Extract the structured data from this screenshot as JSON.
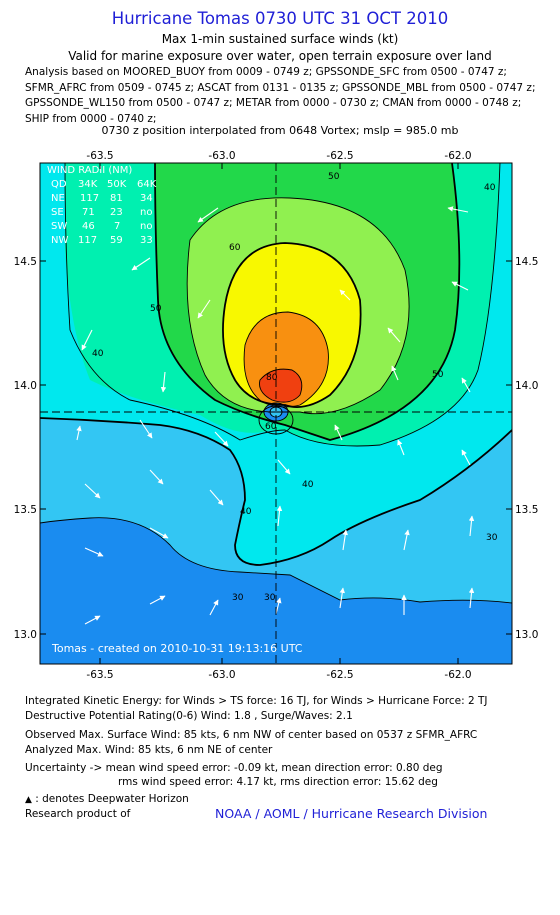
{
  "header": {
    "title": "Hurricane Tomas 0730 UTC 31 OCT 2010",
    "subtitle": "Max 1-min sustained surface winds (kt)",
    "validity": "Valid for marine exposure over water, open terrain exposure over land",
    "analysis_lines": [
      "Analysis based on MOORED_BUOY from 0009 - 0749 z; GPSSONDE_SFC from 0500 - 0747 z;",
      "SFMR_AFRC from 0509 - 0745 z; ASCAT from 0131 - 0135 z; GPSSONDE_MBL from 0500 - 0747 z;",
      "GPSSONDE_WL150 from 0500 - 0747 z; METAR from 0000 - 0730 z; CMAN from 0000 - 0748 z;",
      "SHIP from 0000 - 0740 z;"
    ],
    "position_note": "0730 z position interpolated from 0648 Vortex; mslp = 985.0 mb"
  },
  "map": {
    "lon_ticks": [
      "-63.5",
      "-63.0",
      "-62.5",
      "-62.0"
    ],
    "lat_ticks": [
      "14.5",
      "14.0",
      "13.5",
      "13.0"
    ],
    "contour_labels": [
      "30",
      "30",
      "40",
      "40",
      "40",
      "50",
      "50",
      "50",
      "60",
      "60",
      "80",
      "40",
      "30"
    ],
    "stamp": "Tomas - created on 2010-10-31 19:13:16 UTC",
    "center": {
      "lon": -62.75,
      "lat": 13.88
    },
    "colors": {
      "ocean_blue": "#1a8cf0",
      "light_blue": "#33c6f3",
      "cyan": "#00e8ee",
      "aqua_green": "#00f0b0",
      "green": "#22d84a",
      "light_green": "#90f050",
      "yellow": "#f8f800",
      "orange": "#f89010",
      "red": "#f04010"
    }
  },
  "wind_radii": {
    "title": "WIND RADII (NM)",
    "headers": [
      "QD",
      "34K",
      "50K",
      "64K"
    ],
    "rows": [
      [
        "NE",
        "117",
        "81",
        "34"
      ],
      [
        "SE",
        "71",
        "23",
        "no"
      ],
      [
        "SW",
        "46",
        "7",
        "no"
      ],
      [
        "NW",
        "117",
        "59",
        "33"
      ]
    ]
  },
  "footer": {
    "ike": "Integrated Kinetic Energy:  for Winds > TS force: 16 TJ,  for Winds > Hurricane Force: 2 TJ",
    "dpr": "Destructive Potential Rating(0-6)   Wind: 1.8 , Surge/Waves: 2.1",
    "observed": "Observed Max. Surface Wind: 85 kts, 6 nm NW of center based on 0537 z SFMR_AFRC",
    "analyzed": "Analyzed Max. Wind: 85 kts, 6 nm NE of center",
    "uncertainty1": "Uncertainty -> mean wind speed error:  -0.09 kt,   mean direction error: 0.80 deg",
    "uncertainty2": "rms wind speed error: 4.17 kt,   rms direction error: 15.62 deg",
    "legend_note": ": denotes Deepwater Horizon",
    "research": "Research product of",
    "credit": "NOAA / AOML / Hurricane Research Division"
  }
}
